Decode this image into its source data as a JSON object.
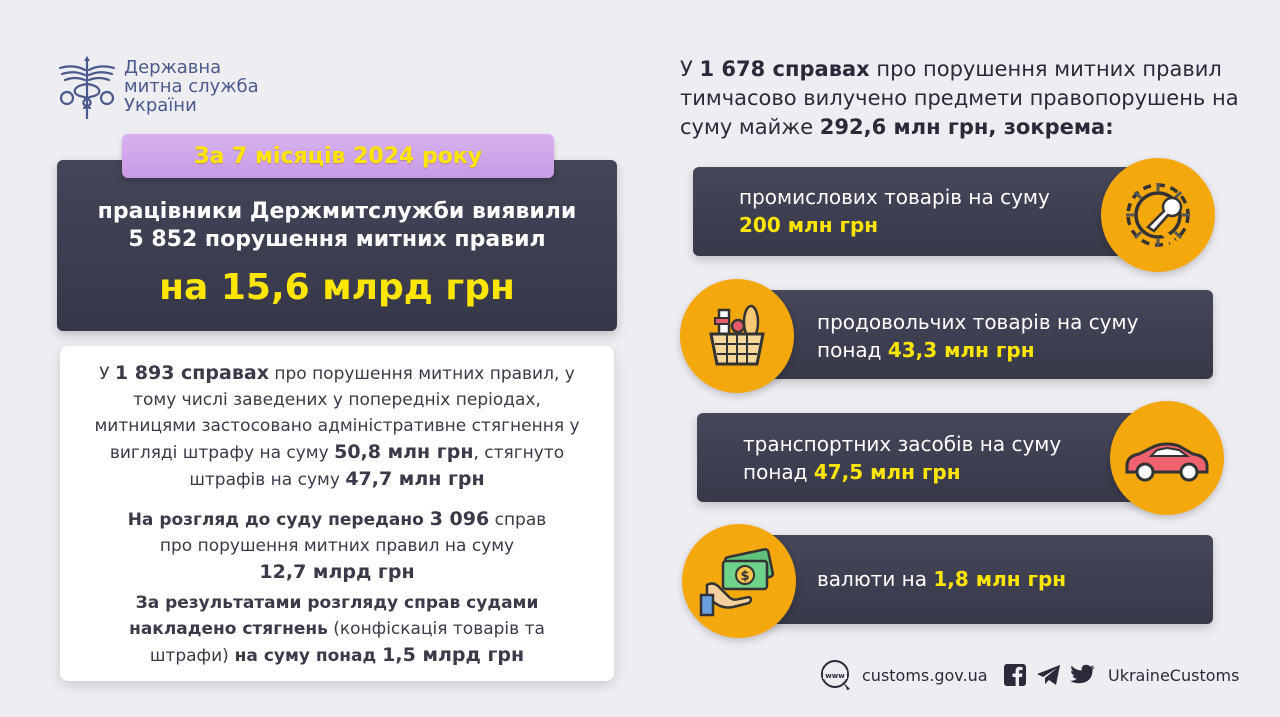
{
  "logo": {
    "line1": "Державна",
    "line2": "митна служба",
    "line3": "України"
  },
  "period_label": "За 7 місяців 2024 року",
  "main": {
    "line1": "працівники Держмитслужби виявили",
    "line2": "5 852 порушення митних правил",
    "amount": "на 15,6 млрд грн"
  },
  "info": {
    "p1_a": "У ",
    "p1_num": "1 893 справах",
    "p1_b": " про порушення митних правил, у тому числі заведених у попередніх періодах, митницями застосовано адміністративне стягнення у вигляді штрафу на суму ",
    "p1_fine": "50,8 млн грн",
    "p1_c": ", стягнуто штрафів на суму ",
    "p1_collected": "47,7 млн грн",
    "p2_a": "На розгляд до суду передано ",
    "p2_num": "3 096",
    "p2_b": " справ",
    "p2_c": "про порушення митних правил на суму",
    "p2_amount": "12,7 млрд грн",
    "p3_a": "За результатами розгляду справ судами накладено стягнень",
    "p3_b": " (конфіскація товарів та штрафи)",
    "p3_c": " на суму понад ",
    "p3_amount": "1,5 млрд грн"
  },
  "heading": {
    "a": "У ",
    "num": "1 678 справах",
    "b": " про порушення митних правил тимчасово вилучено предмети правопорушень на суму майже ",
    "amount": "292,6 млн грн, зокрема:"
  },
  "rows": [
    {
      "text": "промислових товарів на суму",
      "amount": "200 млн грн",
      "icon": "gear-wrench-icon"
    },
    {
      "text": "продовольчих товарів на суму",
      "prefix": "понад ",
      "amount": "43,3 млн грн",
      "icon": "food-basket-icon"
    },
    {
      "text": "транспортних засобів на суму",
      "prefix": "понад ",
      "amount": "47,5 млн грн",
      "icon": "car-icon"
    },
    {
      "text": "валюти на ",
      "amount": "1,8 млн грн",
      "icon": "money-hand-icon"
    }
  ],
  "footer": {
    "website": "customs.gov.ua",
    "social": "UkraineCustoms"
  },
  "colors": {
    "accent_yellow": "#ffe600",
    "icon_orange": "#f5a80c",
    "card_dark": "#3d3f51",
    "label_purple": "#cfa6ea",
    "logo_blue": "#4a5a8c"
  }
}
